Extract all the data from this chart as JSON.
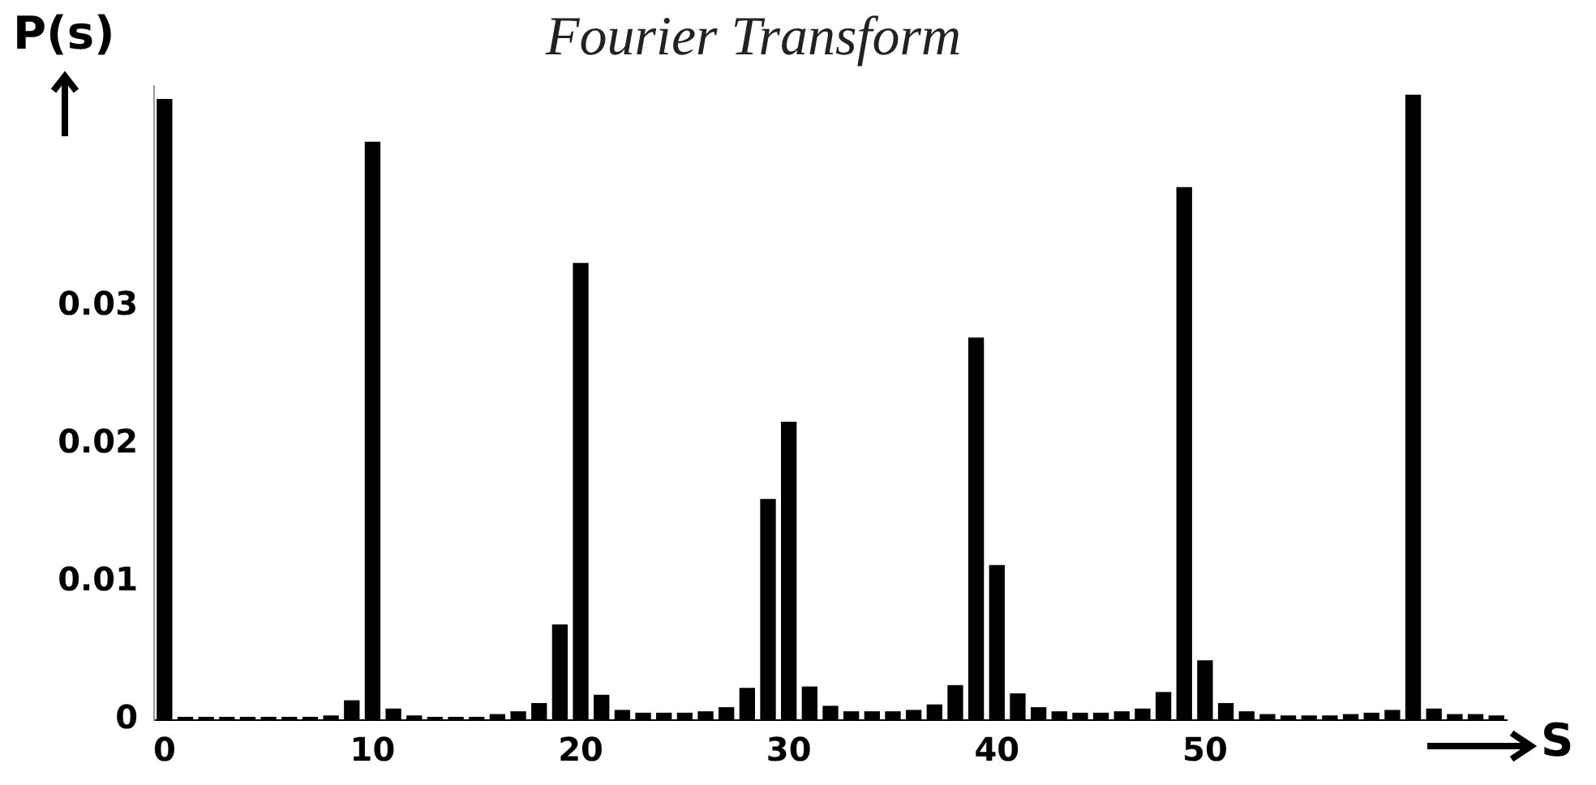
{
  "chart_data": {
    "type": "bar",
    "title": "Fourier Transform",
    "xlabel": "S",
    "ylabel": "P(s)",
    "x": [
      0,
      1,
      2,
      3,
      4,
      5,
      6,
      7,
      8,
      9,
      10,
      11,
      12,
      13,
      14,
      15,
      16,
      17,
      18,
      19,
      20,
      21,
      22,
      23,
      24,
      25,
      26,
      27,
      28,
      29,
      30,
      31,
      32,
      33,
      34,
      35,
      36,
      37,
      38,
      39,
      40,
      41,
      42,
      43,
      44,
      45,
      46,
      47,
      48,
      49,
      50,
      51,
      52,
      53,
      54,
      55,
      56,
      57,
      58,
      59,
      60,
      61,
      62,
      63,
      64
    ],
    "values": [
      0.045,
      0.0002,
      0.0002,
      0.0002,
      0.0002,
      0.0002,
      0.0002,
      0.0002,
      0.0003,
      0.0014,
      0.0419,
      0.0008,
      0.0003,
      0.0002,
      0.0002,
      0.0002,
      0.0004,
      0.0006,
      0.0012,
      0.0069,
      0.0331,
      0.0018,
      0.0007,
      0.0005,
      0.0005,
      0.0005,
      0.0006,
      0.0009,
      0.0023,
      0.016,
      0.0216,
      0.0024,
      0.001,
      0.0006,
      0.0006,
      0.0006,
      0.0007,
      0.0011,
      0.0025,
      0.0277,
      0.0112,
      0.0019,
      0.0009,
      0.0006,
      0.0005,
      0.0005,
      0.0006,
      0.0008,
      0.002,
      0.0386,
      0.0043,
      0.0012,
      0.0006,
      0.0004,
      0.0003,
      0.0003,
      0.0003,
      0.0004,
      0.0005,
      0.0007,
      0.0453,
      0.0008,
      0.0004,
      0.0004,
      0.0003
    ],
    "color": "#000000",
    "xlim": [
      -0.5,
      64.5
    ],
    "xticks": [
      0,
      10,
      20,
      30,
      40,
      50
    ],
    "ylim": [
      0,
      0.046
    ],
    "yticks": [
      0,
      0.01,
      0.02,
      0.03
    ]
  }
}
